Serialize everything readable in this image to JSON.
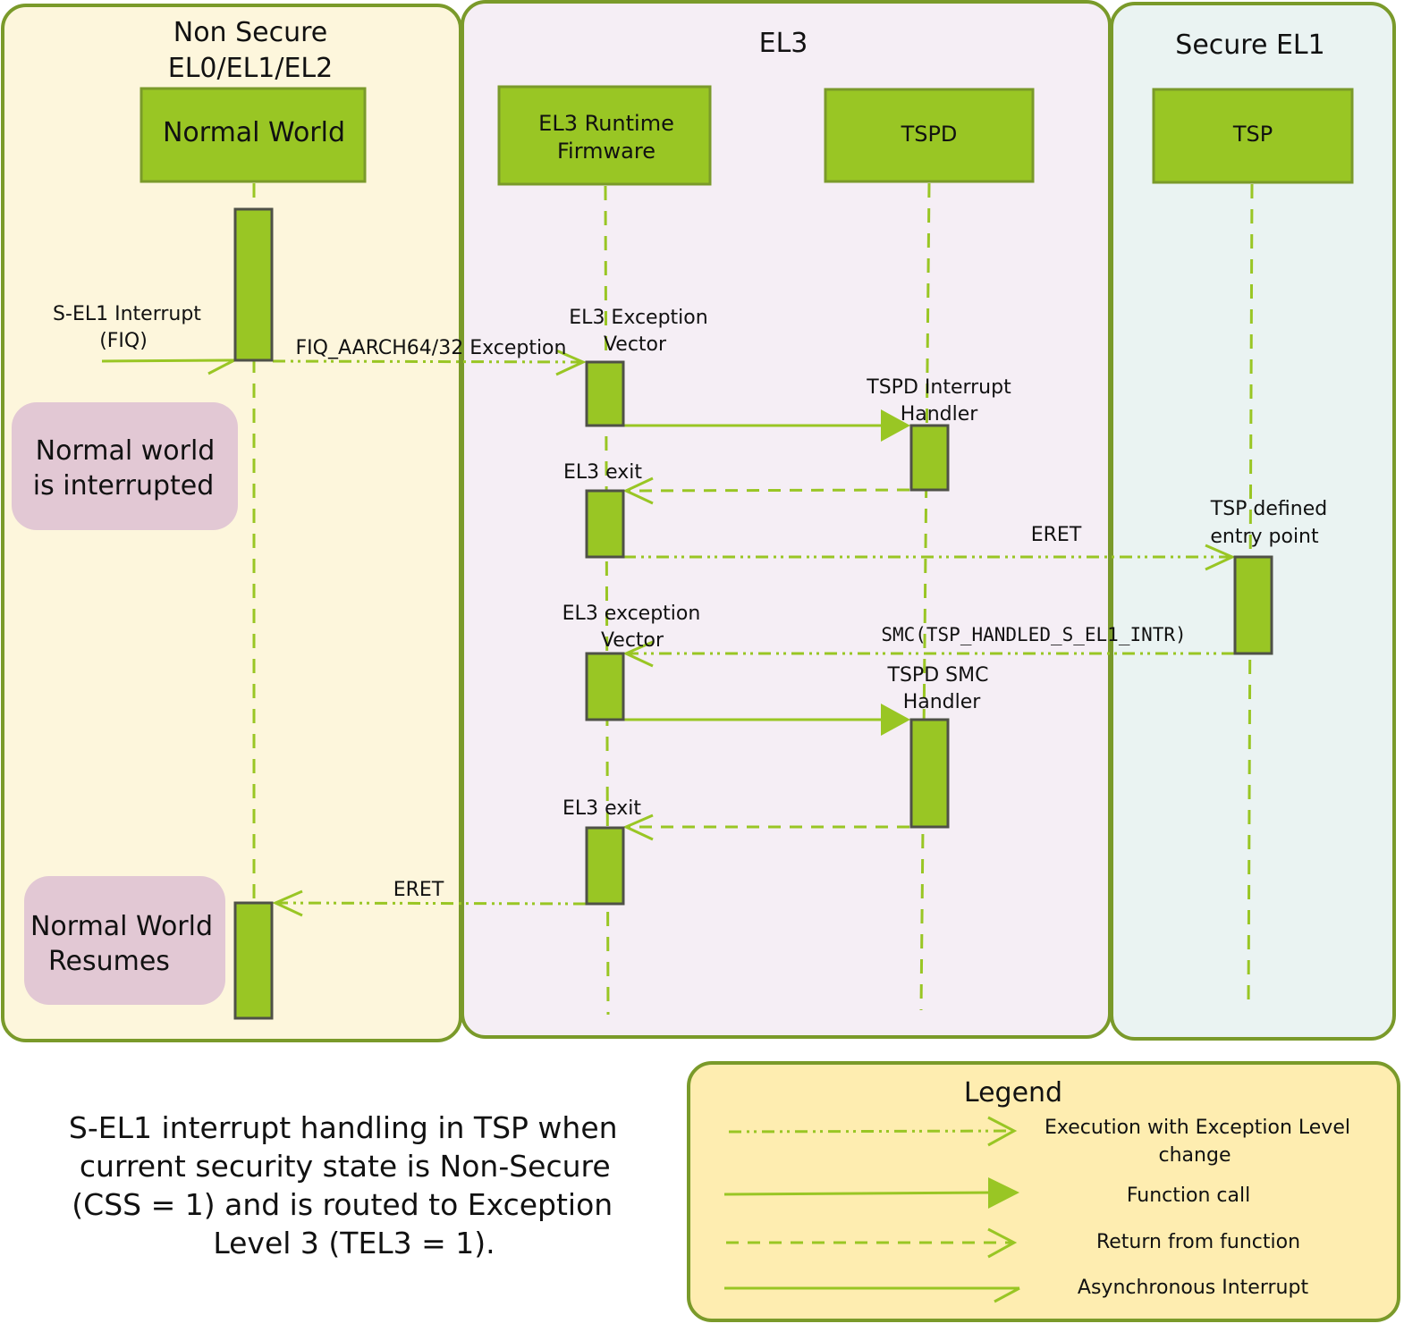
{
  "colors": {
    "accent_green": "#99c624",
    "panel_border": "#7a9a2a",
    "non_secure_bg": "#fdf6dc",
    "el3_bg": "#f5eef5",
    "secure_bg": "#eaf3f2",
    "note_bg": "#e2c8d4",
    "legend_bg": "#feedb0"
  },
  "panels": {
    "non_secure": {
      "title_line1": "Non Secure",
      "title_line2": "EL0/EL1/EL2"
    },
    "el3": {
      "title": "EL3"
    },
    "secure_el1": {
      "title": "Secure EL1"
    }
  },
  "participants": {
    "normal_world": "Normal World",
    "el3_runtime_line1": "EL3 Runtime",
    "el3_runtime_line2": "Firmware",
    "tspd": "TSPD",
    "tsp": "TSP"
  },
  "messages": {
    "interrupt_line1": "S-EL1 Interrupt",
    "interrupt_line2": "(FIQ)",
    "fiq_exception": "FIQ_AARCH64/32 Exception",
    "el3_vector_line1": "EL3 Exception",
    "el3_vector_line2": "Vector",
    "tspd_handler_line1": "TSPD Interrupt",
    "tspd_handler_line2": "Handler",
    "el3_exit_1": "EL3 exit",
    "eret_1": "ERET",
    "tsp_entry_line1": "TSP defined",
    "tsp_entry_line2": "entry point",
    "el3_exc_vector2_line1": "EL3 exception",
    "el3_exc_vector2_line2": "Vector",
    "smc": "SMC(TSP_HANDLED_S_EL1_INTR)",
    "tspd_smc_line1": "TSPD SMC",
    "tspd_smc_line2": "Handler",
    "el3_exit_2": "EL3 exit",
    "eret_2": "ERET"
  },
  "notes": {
    "interrupted_line1": "Normal world",
    "interrupted_line2": "is interrupted",
    "resumes_line1": "Normal World",
    "resumes_line2": "Resumes"
  },
  "caption": {
    "line1": "S-EL1 interrupt handling in TSP when",
    "line2": "current security state is Non-Secure",
    "line3": "(CSS = 1) and is routed to Exception",
    "line4": "Level 3 (TEL3 = 1)."
  },
  "legend": {
    "title": "Legend",
    "items": [
      {
        "line1": "Execution with Exception Level",
        "line2": "change",
        "style": "dash-dot-dot-open-arrow"
      },
      {
        "line1": "Function call",
        "style": "solid-filled-arrow"
      },
      {
        "line1": "Return from function",
        "style": "dashed-open-arrow"
      },
      {
        "line1": "Asynchronous Interrupt",
        "style": "solid-open-arrow"
      }
    ]
  }
}
